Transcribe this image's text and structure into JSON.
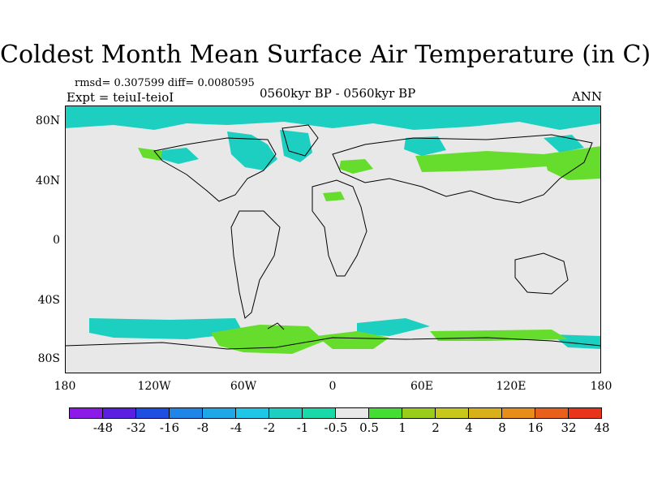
{
  "title": "Coldest Month Mean Surface Air Temperature (in C)",
  "stats_text": "rmsd= 0.307599 diff= 0.0080595",
  "expt_text": "Expt = teiuI-teioI",
  "period_text": "0560kyr BP - 0560kyr BP",
  "season_text": "ANN",
  "axes": {
    "lat_ticks": [
      "80N",
      "40N",
      "0",
      "40S",
      "80S"
    ],
    "lon_ticks": [
      "180",
      "120W",
      "60W",
      "0",
      "60E",
      "120E",
      "180"
    ]
  },
  "colors": {
    "neutral": "#e8e8e8",
    "land_outline": "#000000",
    "cyan_anomaly": "#1ccfc0",
    "green_anomaly": "#66dd2c"
  },
  "colorbar": {
    "colors": [
      "#8c1be8",
      "#5a1fe0",
      "#1f4fe0",
      "#1f86e8",
      "#1fa8e8",
      "#1fc6e8",
      "#1ccfc0",
      "#19d9a8",
      "#e8e8e8",
      "#44dd33",
      "#9acd1a",
      "#c8c81a",
      "#d8b01a",
      "#e88c1a",
      "#e8601a",
      "#e8341a"
    ],
    "labels": [
      "-48",
      "-32",
      "-16",
      "-8",
      "-4",
      "-2",
      "-1",
      "-0.5",
      "0.5",
      "1",
      "2",
      "4",
      "8",
      "16",
      "32",
      "48"
    ]
  }
}
